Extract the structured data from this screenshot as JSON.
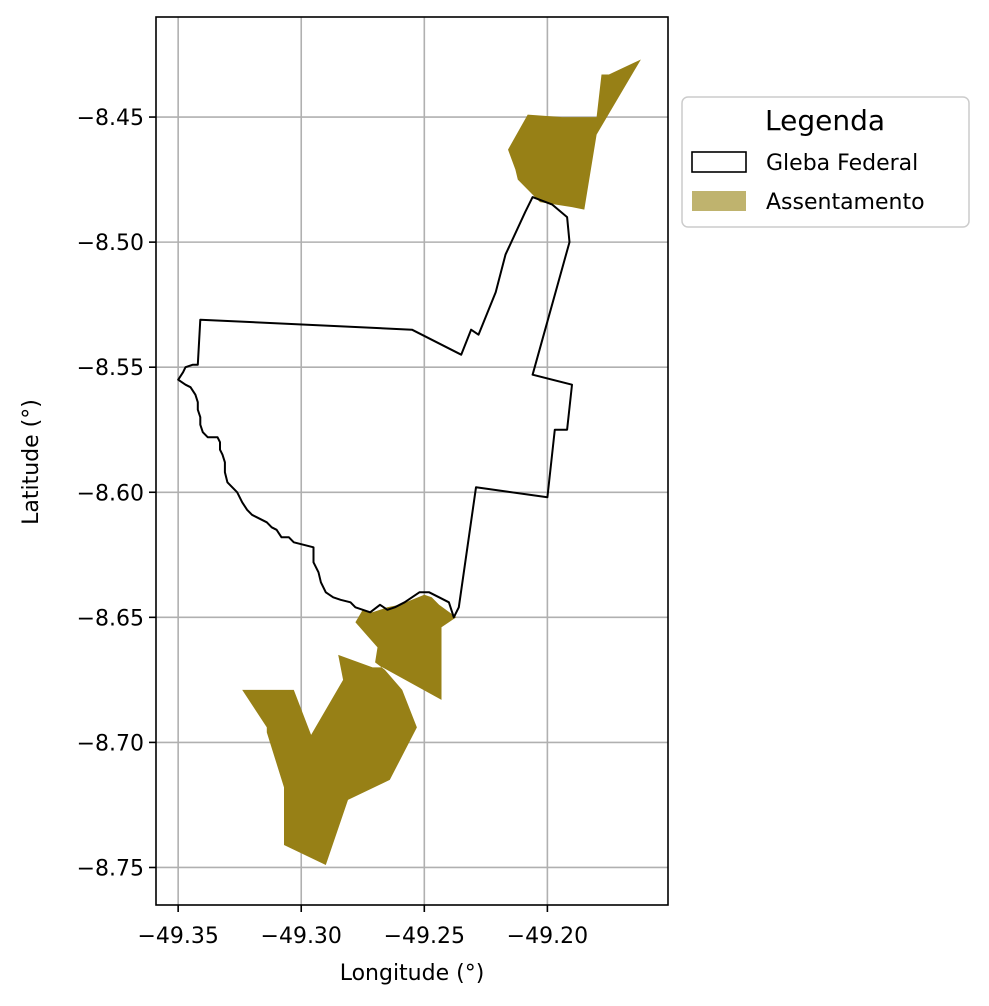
{
  "chart_data": {
    "type": "map",
    "xlabel": "Longitude (°)",
    "ylabel": "Latitude (°)",
    "xlim": [
      -49.359,
      -49.151
    ],
    "ylim": [
      -8.765,
      -8.41
    ],
    "xticks": [
      -49.35,
      -49.3,
      -49.25,
      -49.2
    ],
    "xtick_labels": [
      "−49.35",
      "−49.30",
      "−49.25",
      "−49.20"
    ],
    "yticks": [
      -8.45,
      -8.5,
      -8.55,
      -8.6,
      -8.65,
      -8.7,
      -8.75
    ],
    "ytick_labels": [
      "−8.45",
      "−8.50",
      "−8.55",
      "−8.60",
      "−8.65",
      "−8.70",
      "−8.75"
    ],
    "grid": true,
    "legend": {
      "title": "Legenda",
      "position": "outside-right",
      "entries": [
        {
          "label": "Gleba Federal",
          "style": "outline",
          "color": "#000000"
        },
        {
          "label": "Assentamento",
          "style": "fill",
          "color": "#bfb36e"
        }
      ]
    },
    "colors": {
      "gleba_stroke": "#000000",
      "assentamento_fill": "#978016",
      "grid": "#b0b0b0"
    },
    "layers": {
      "gleba": [
        [
          -49.35,
          -8.555
        ],
        [
          -49.348,
          -8.552
        ],
        [
          -49.347,
          -8.55
        ],
        [
          -49.344,
          -8.549
        ],
        [
          -49.342,
          -8.549
        ],
        [
          -49.341,
          -8.531
        ],
        [
          -49.255,
          -8.535
        ],
        [
          -49.235,
          -8.545
        ],
        [
          -49.231,
          -8.535
        ],
        [
          -49.228,
          -8.537
        ],
        [
          -49.221,
          -8.52
        ],
        [
          -49.217,
          -8.505
        ],
        [
          -49.209,
          -8.488
        ],
        [
          -49.206,
          -8.482
        ],
        [
          -49.198,
          -8.485
        ],
        [
          -49.192,
          -8.49
        ],
        [
          -49.191,
          -8.5
        ],
        [
          -49.206,
          -8.553
        ],
        [
          -49.19,
          -8.557
        ],
        [
          -49.192,
          -8.575
        ],
        [
          -49.197,
          -8.575
        ],
        [
          -49.2,
          -8.602
        ],
        [
          -49.229,
          -8.598
        ],
        [
          -49.236,
          -8.646
        ],
        [
          -49.238,
          -8.65
        ],
        [
          -49.24,
          -8.644
        ],
        [
          -49.244,
          -8.642
        ],
        [
          -49.248,
          -8.64
        ],
        [
          -49.252,
          -8.64
        ],
        [
          -49.255,
          -8.642
        ],
        [
          -49.258,
          -8.644
        ],
        [
          -49.262,
          -8.646
        ],
        [
          -49.265,
          -8.647
        ],
        [
          -49.268,
          -8.645
        ],
        [
          -49.272,
          -8.648
        ],
        [
          -49.275,
          -8.647
        ],
        [
          -49.278,
          -8.646
        ],
        [
          -49.28,
          -8.644
        ],
        [
          -49.284,
          -8.643
        ],
        [
          -49.287,
          -8.642
        ],
        [
          -49.29,
          -8.64
        ],
        [
          -49.292,
          -8.636
        ],
        [
          -49.293,
          -8.632
        ],
        [
          -49.295,
          -8.628
        ],
        [
          -49.295,
          -8.622
        ],
        [
          -49.299,
          -8.621
        ],
        [
          -49.303,
          -8.62
        ],
        [
          -49.305,
          -8.618
        ],
        [
          -49.308,
          -8.618
        ],
        [
          -49.31,
          -8.615
        ],
        [
          -49.312,
          -8.614
        ],
        [
          -49.314,
          -8.612
        ],
        [
          -49.318,
          -8.61
        ],
        [
          -49.32,
          -8.609
        ],
        [
          -49.322,
          -8.607
        ],
        [
          -49.324,
          -8.604
        ],
        [
          -49.326,
          -8.6
        ],
        [
          -49.328,
          -8.598
        ],
        [
          -49.33,
          -8.596
        ],
        [
          -49.331,
          -8.592
        ],
        [
          -49.331,
          -8.588
        ],
        [
          -49.332,
          -8.585
        ],
        [
          -49.333,
          -8.583
        ],
        [
          -49.333,
          -8.58
        ],
        [
          -49.334,
          -8.578
        ],
        [
          -49.338,
          -8.578
        ],
        [
          -49.34,
          -8.576
        ],
        [
          -49.341,
          -8.573
        ],
        [
          -49.341,
          -8.57
        ],
        [
          -49.342,
          -8.567
        ],
        [
          -49.342,
          -8.564
        ],
        [
          -49.343,
          -8.561
        ],
        [
          -49.345,
          -8.558
        ],
        [
          -49.347,
          -8.557
        ],
        [
          -49.35,
          -8.555
        ]
      ],
      "assentamento": [
        [
          [
            -49.175,
            -8.433
          ],
          [
            -49.162,
            -8.427
          ],
          [
            -49.18,
            -8.457
          ],
          [
            -49.185,
            -8.487
          ],
          [
            -49.19,
            -8.486
          ],
          [
            -49.203,
            -8.484
          ],
          [
            -49.209,
            -8.478
          ],
          [
            -49.212,
            -8.475
          ],
          [
            -49.213,
            -8.471
          ],
          [
            -49.216,
            -8.463
          ],
          [
            -49.208,
            -8.449
          ],
          [
            -49.194,
            -8.45
          ],
          [
            -49.18,
            -8.45
          ],
          [
            -49.178,
            -8.433
          ],
          [
            -49.175,
            -8.433
          ]
        ],
        [
          [
            -49.247,
            -8.642
          ],
          [
            -49.25,
            -8.641
          ],
          [
            -49.255,
            -8.643
          ],
          [
            -49.26,
            -8.645
          ],
          [
            -49.265,
            -8.646
          ],
          [
            -49.271,
            -8.648
          ],
          [
            -49.275,
            -8.647
          ],
          [
            -49.278,
            -8.652
          ],
          [
            -49.269,
            -8.662
          ],
          [
            -49.27,
            -8.668
          ],
          [
            -49.266,
            -8.671
          ],
          [
            -49.259,
            -8.679
          ],
          [
            -49.253,
            -8.694
          ],
          [
            -49.264,
            -8.715
          ],
          [
            -49.281,
            -8.723
          ],
          [
            -49.29,
            -8.749
          ],
          [
            -49.307,
            -8.741
          ],
          [
            -49.307,
            -8.718
          ],
          [
            -49.314,
            -8.696
          ],
          [
            -49.314,
            -8.694
          ],
          [
            -49.324,
            -8.679
          ],
          [
            -49.303,
            -8.679
          ],
          [
            -49.296,
            -8.697
          ],
          [
            -49.283,
            -8.675
          ],
          [
            -49.285,
            -8.665
          ],
          [
            -49.271,
            -8.67
          ],
          [
            -49.267,
            -8.67
          ],
          [
            -49.243,
            -8.683
          ],
          [
            -49.243,
            -8.654
          ],
          [
            -49.237,
            -8.65
          ],
          [
            -49.244,
            -8.645
          ],
          [
            -49.247,
            -8.642
          ]
        ]
      ]
    }
  }
}
